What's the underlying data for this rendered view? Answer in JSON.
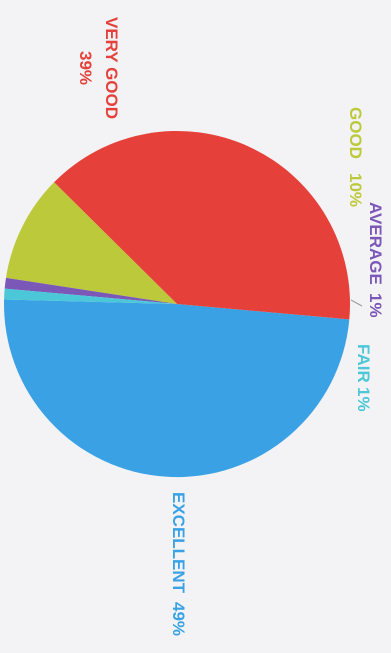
{
  "chart_data": {
    "type": "pie",
    "title": "",
    "slices": [
      {
        "label": "EXCELLENT",
        "value": 49,
        "value_label": "49%",
        "color": "#3aa2e4"
      },
      {
        "label": "VERY GOOD",
        "value": 39,
        "value_label": "39%",
        "color": "#e5413a"
      },
      {
        "label": "GOOD",
        "value": 10,
        "value_label": "10%",
        "color": "#bcc93a"
      },
      {
        "label": "AVERAGE",
        "value": 1,
        "value_label": "1%",
        "color": "#7b57b8"
      },
      {
        "label": "FAIR",
        "value": 1,
        "value_label": "1%",
        "color": "#4cc7d8"
      }
    ],
    "legend": "none",
    "text_orientation": "rotated 90 degrees clockwise"
  }
}
